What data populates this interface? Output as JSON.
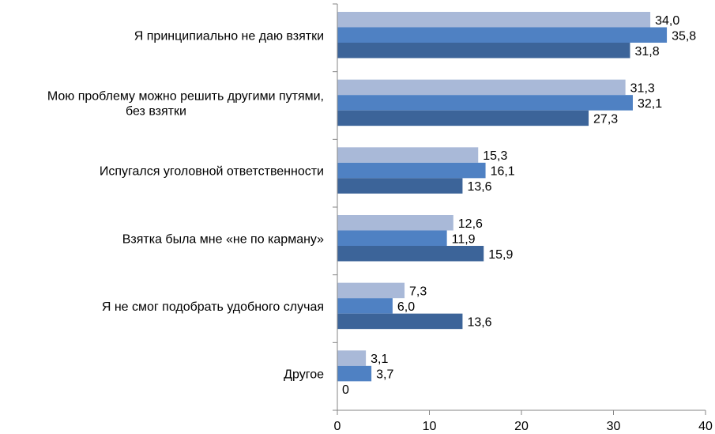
{
  "chart_data": {
    "type": "bar",
    "orientation": "horizontal",
    "title": "",
    "xlabel": "",
    "ylabel": "",
    "xlim": [
      0,
      40
    ],
    "x_ticks": [
      "0",
      "10",
      "20",
      "30",
      "40"
    ],
    "grid": false,
    "legend": "none",
    "categories": [
      [
        "Я принципиально не даю взятки"
      ],
      [
        "Мою проблему можно решить другими путями,",
        "без взятки"
      ],
      [
        "Испугался уголовной ответственности"
      ],
      [
        "Взятка была мне «не по карману»"
      ],
      [
        "Я не смог подобрать удобного случая"
      ],
      [
        "Другое"
      ]
    ],
    "series": [
      {
        "color": "#a9b9d8",
        "values": [
          34.0,
          31.3,
          15.3,
          12.6,
          7.3,
          3.1
        ],
        "labels": [
          "34,0",
          "31,3",
          "15,3",
          "12,6",
          "7,3",
          "3,1"
        ]
      },
      {
        "color": "#4f81c3",
        "values": [
          35.8,
          32.1,
          16.1,
          11.9,
          6.0,
          3.7
        ],
        "labels": [
          "35,8",
          "32,1",
          "16,1",
          "11,9",
          "6,0",
          "3,7"
        ]
      },
      {
        "color": "#3c6499",
        "values": [
          31.8,
          27.3,
          13.6,
          15.9,
          13.6,
          0
        ],
        "labels": [
          "31,8",
          "27,3",
          "13,6",
          "15,9",
          "13,6",
          "0"
        ]
      }
    ]
  }
}
